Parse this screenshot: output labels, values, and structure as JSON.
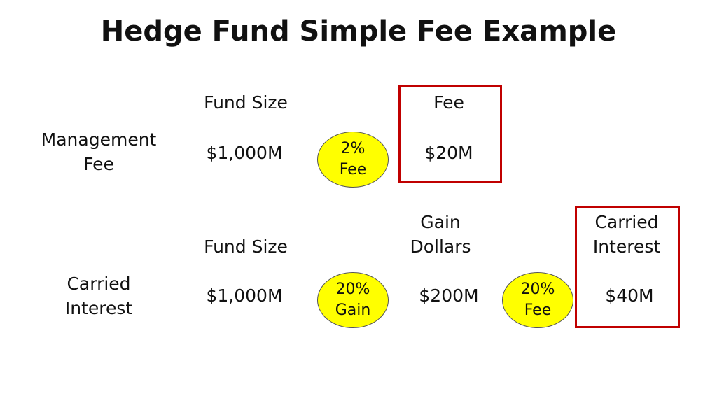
{
  "title": "Hedge Fund Simple Fee Example",
  "colors": {
    "ellipse_fill": "#ffff00",
    "highlight_border": "#c00000"
  },
  "management_fee": {
    "label_line1": "Management",
    "label_line2": "Fee",
    "fund_size_header": "Fund Size",
    "fund_size_value": "$1,000M",
    "rate_line1": "2%",
    "rate_line2": "Fee",
    "fee_header": "Fee",
    "fee_value": "$20M"
  },
  "carried_interest": {
    "label_line1": "Carried",
    "label_line2": "Interest",
    "fund_size_header": "Fund Size",
    "fund_size_value": "$1,000M",
    "gain_rate_line1": "20%",
    "gain_rate_line2": "Gain",
    "gain_header_line1": "Gain",
    "gain_header_line2": "Dollars",
    "gain_value": "$200M",
    "fee_rate_line1": "20%",
    "fee_rate_line2": "Fee",
    "result_header_line1": "Carried",
    "result_header_line2": "Interest",
    "result_value": "$40M"
  }
}
